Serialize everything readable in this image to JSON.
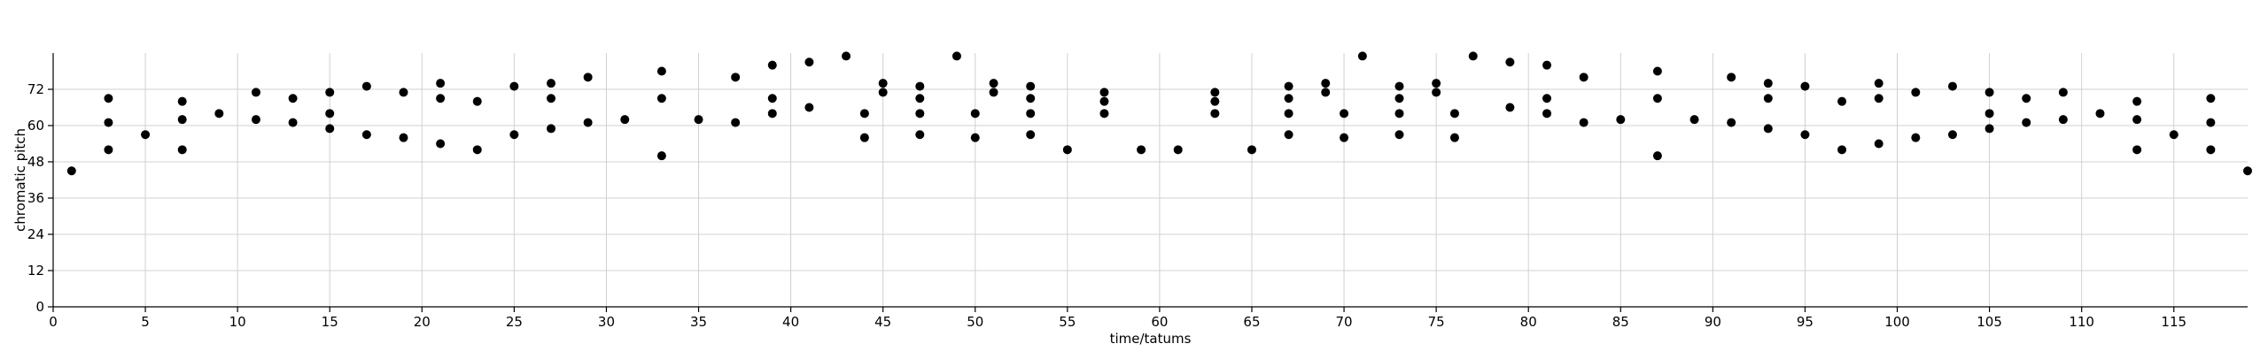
{
  "chart_data": {
    "type": "scatter",
    "title": "",
    "xlabel": "time/tatums",
    "ylabel": "chromatic pitch",
    "xlim": [
      0,
      119
    ],
    "ylim": [
      0,
      84
    ],
    "x_ticks": [
      0,
      5,
      10,
      15,
      20,
      25,
      30,
      35,
      40,
      45,
      50,
      55,
      60,
      65,
      70,
      75,
      80,
      85,
      90,
      95,
      100,
      105,
      110,
      115
    ],
    "y_ticks": [
      0,
      12,
      24,
      36,
      48,
      60,
      72
    ],
    "grid": true,
    "marker_color": "#000000",
    "series": [
      {
        "points": [
          [
            1,
            45
          ],
          [
            3,
            52
          ],
          [
            3,
            61
          ],
          [
            3,
            69
          ],
          [
            5,
            57
          ],
          [
            7,
            52
          ],
          [
            7,
            62
          ],
          [
            7,
            68
          ],
          [
            9,
            64
          ],
          [
            11,
            62
          ],
          [
            11,
            71
          ],
          [
            13,
            61
          ],
          [
            13,
            69
          ],
          [
            15,
            59
          ],
          [
            15,
            64
          ],
          [
            15,
            71
          ],
          [
            17,
            57
          ],
          [
            17,
            73
          ],
          [
            19,
            56
          ],
          [
            19,
            71
          ],
          [
            21,
            54
          ],
          [
            21,
            69
          ],
          [
            21,
            74
          ],
          [
            23,
            52
          ],
          [
            23,
            68
          ],
          [
            25,
            57
          ],
          [
            25,
            73
          ],
          [
            27,
            59
          ],
          [
            27,
            69
          ],
          [
            27,
            74
          ],
          [
            29,
            61
          ],
          [
            29,
            76
          ],
          [
            31,
            62
          ],
          [
            33,
            50
          ],
          [
            33,
            69
          ],
          [
            33,
            78
          ],
          [
            35,
            62
          ],
          [
            37,
            61
          ],
          [
            37,
            76
          ],
          [
            39,
            64
          ],
          [
            39,
            69
          ],
          [
            39,
            80
          ],
          [
            41,
            66
          ],
          [
            41,
            81
          ],
          [
            43,
            83
          ],
          [
            44,
            56
          ],
          [
            44,
            64
          ],
          [
            45,
            71
          ],
          [
            45,
            74
          ],
          [
            47,
            57
          ],
          [
            47,
            64
          ],
          [
            47,
            69
          ],
          [
            47,
            73
          ],
          [
            49,
            83
          ],
          [
            50,
            56
          ],
          [
            50,
            64
          ],
          [
            51,
            71
          ],
          [
            51,
            74
          ],
          [
            53,
            57
          ],
          [
            53,
            64
          ],
          [
            53,
            69
          ],
          [
            53,
            73
          ],
          [
            55,
            52
          ],
          [
            57,
            64
          ],
          [
            57,
            68
          ],
          [
            57,
            71
          ],
          [
            59,
            52
          ],
          [
            61,
            52
          ],
          [
            63,
            64
          ],
          [
            63,
            68
          ],
          [
            63,
            71
          ],
          [
            65,
            52
          ],
          [
            67,
            57
          ],
          [
            67,
            64
          ],
          [
            67,
            69
          ],
          [
            67,
            73
          ],
          [
            69,
            71
          ],
          [
            69,
            74
          ],
          [
            70,
            56
          ],
          [
            70,
            64
          ],
          [
            71,
            83
          ],
          [
            73,
            57
          ],
          [
            73,
            64
          ],
          [
            73,
            69
          ],
          [
            73,
            73
          ],
          [
            75,
            71
          ],
          [
            75,
            74
          ],
          [
            76,
            56
          ],
          [
            76,
            64
          ],
          [
            77,
            83
          ],
          [
            79,
            66
          ],
          [
            79,
            81
          ],
          [
            81,
            64
          ],
          [
            81,
            69
          ],
          [
            81,
            80
          ],
          [
            83,
            61
          ],
          [
            83,
            76
          ],
          [
            85,
            62
          ],
          [
            87,
            50
          ],
          [
            87,
            69
          ],
          [
            87,
            78
          ],
          [
            89,
            62
          ],
          [
            91,
            61
          ],
          [
            91,
            76
          ],
          [
            93,
            59
          ],
          [
            93,
            69
          ],
          [
            93,
            74
          ],
          [
            95,
            57
          ],
          [
            95,
            73
          ],
          [
            97,
            52
          ],
          [
            97,
            68
          ],
          [
            99,
            54
          ],
          [
            99,
            69
          ],
          [
            99,
            74
          ],
          [
            101,
            56
          ],
          [
            101,
            71
          ],
          [
            103,
            57
          ],
          [
            103,
            73
          ],
          [
            105,
            59
          ],
          [
            105,
            64
          ],
          [
            105,
            71
          ],
          [
            107,
            61
          ],
          [
            107,
            69
          ],
          [
            109,
            62
          ],
          [
            109,
            71
          ],
          [
            111,
            64
          ],
          [
            113,
            52
          ],
          [
            113,
            62
          ],
          [
            113,
            68
          ],
          [
            115,
            57
          ],
          [
            117,
            52
          ],
          [
            117,
            61
          ],
          [
            117,
            69
          ],
          [
            119,
            45
          ]
        ]
      }
    ]
  }
}
